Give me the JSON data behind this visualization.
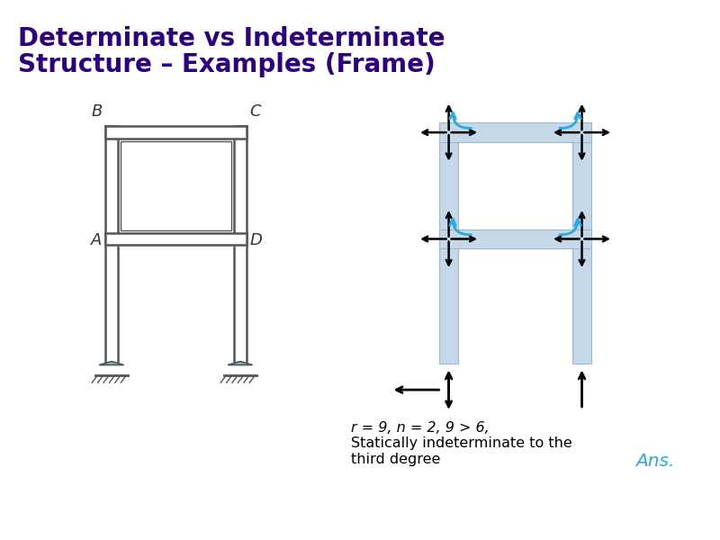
{
  "title_line1": "Determinate vs Indeterminate",
  "title_line2": "Structure – Examples (Frame)",
  "title_color": "#2d0080",
  "title_fontsize": 20,
  "title_fontweight": "bold",
  "bg_color": "#ffffff",
  "formula_line1": "r = 9, n = 2, 9 > 6,",
  "formula_line2": "Statically indeterminate to the",
  "formula_line3": "third degree",
  "ans_text": "Ans.",
  "ans_color": "#29aae1",
  "formula_fontsize": 11.5
}
